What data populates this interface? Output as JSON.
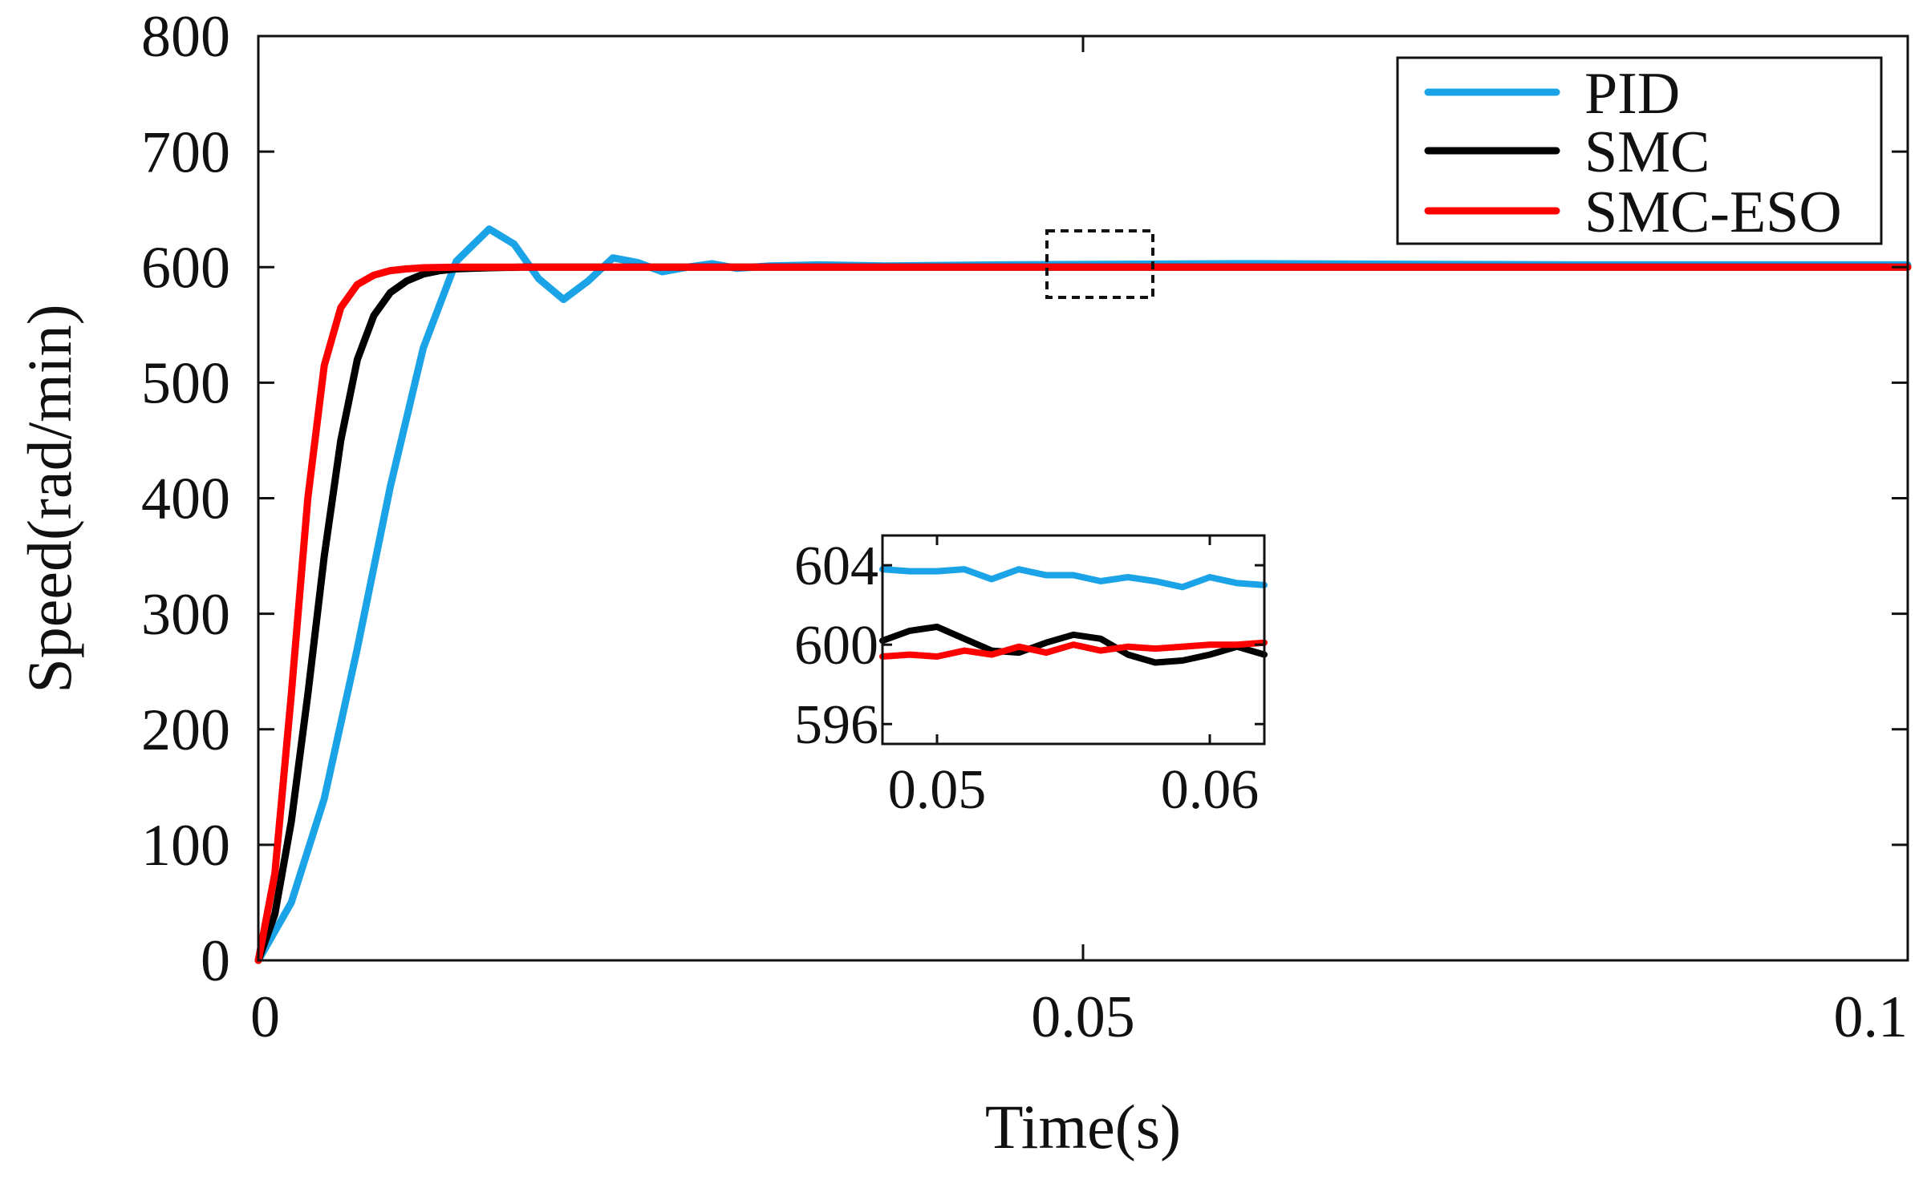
{
  "chart_data": [
    {
      "id": "main",
      "type": "line",
      "title": "",
      "xlabel": "Time(s)",
      "ylabel": "Speed(rad/min)",
      "xlim": [
        0,
        0.1
      ],
      "ylim": [
        0,
        800
      ],
      "xticks": [
        0,
        0.05,
        0.1
      ],
      "xtick_labels": [
        "0",
        "0.05",
        "0.1"
      ],
      "yticks": [
        0,
        100,
        200,
        300,
        400,
        500,
        600,
        700,
        800
      ],
      "ytick_labels": [
        "0",
        "100",
        "200",
        "300",
        "400",
        "500",
        "600",
        "700",
        "800"
      ],
      "grid": false,
      "legend_position": "top-right",
      "series": [
        {
          "name": "PID",
          "color": "#1aa3e6",
          "x": [
            0,
            0.002,
            0.004,
            0.006,
            0.008,
            0.01,
            0.012,
            0.014,
            0.0155,
            0.017,
            0.0185,
            0.02,
            0.0215,
            0.023,
            0.0245,
            0.026,
            0.0275,
            0.029,
            0.031,
            0.034,
            0.038,
            0.045,
            0.06,
            0.08,
            0.1
          ],
          "y": [
            0,
            50,
            140,
            270,
            410,
            530,
            605,
            633,
            620,
            590,
            572,
            588,
            608,
            604,
            596,
            600,
            603,
            599,
            601,
            602,
            601,
            602,
            603,
            602,
            602
          ]
        },
        {
          "name": "SMC",
          "color": "#000000",
          "x": [
            0,
            0.001,
            0.002,
            0.003,
            0.004,
            0.005,
            0.006,
            0.007,
            0.008,
            0.009,
            0.01,
            0.011,
            0.012,
            0.014,
            0.016,
            0.018,
            0.022,
            0.03,
            0.05,
            0.1
          ],
          "y": [
            0,
            40,
            120,
            230,
            350,
            450,
            520,
            558,
            578,
            588,
            594,
            597,
            598.5,
            599.5,
            600,
            600,
            600,
            600,
            600,
            600
          ]
        },
        {
          "name": "SMC-ESO",
          "color": "#ff0000",
          "x": [
            0,
            0.001,
            0.002,
            0.003,
            0.004,
            0.005,
            0.006,
            0.007,
            0.008,
            0.009,
            0.01,
            0.012,
            0.014,
            0.02,
            0.05,
            0.1
          ],
          "y": [
            0,
            75,
            230,
            400,
            515,
            565,
            585,
            593,
            597,
            598.5,
            599.5,
            600,
            600,
            600,
            600,
            600
          ]
        }
      ],
      "annotations": [
        "dashed zoom box near t=0.05 s, 600 rad/min"
      ]
    },
    {
      "id": "inset",
      "type": "line",
      "xlim": [
        0.048,
        0.062
      ],
      "ylim": [
        595,
        605.5
      ],
      "xticks": [
        0.05,
        0.06
      ],
      "xtick_labels": [
        "0.05",
        "0.06"
      ],
      "yticks": [
        596,
        600,
        604
      ],
      "ytick_labels": [
        "596",
        "600",
        "604"
      ],
      "series": [
        {
          "name": "PID",
          "x": [
            0.048,
            0.049,
            0.05,
            0.051,
            0.052,
            0.053,
            0.054,
            0.055,
            0.056,
            0.057,
            0.058,
            0.059,
            0.06,
            0.061,
            0.062
          ],
          "y": [
            603.8,
            603.7,
            603.7,
            603.8,
            603.3,
            603.8,
            603.5,
            603.5,
            603.2,
            603.4,
            603.2,
            602.9,
            603.4,
            603.1,
            603.0
          ]
        },
        {
          "name": "SMC",
          "x": [
            0.048,
            0.049,
            0.05,
            0.051,
            0.052,
            0.053,
            0.054,
            0.055,
            0.056,
            0.057,
            0.058,
            0.059,
            0.06,
            0.061,
            0.062
          ],
          "y": [
            600.2,
            600.7,
            600.9,
            600.3,
            599.7,
            599.6,
            600.1,
            600.5,
            600.3,
            599.5,
            599.1,
            599.2,
            599.5,
            599.9,
            599.5
          ]
        },
        {
          "name": "SMC-ESO",
          "x": [
            0.048,
            0.049,
            0.05,
            0.051,
            0.052,
            0.053,
            0.054,
            0.055,
            0.056,
            0.057,
            0.058,
            0.059,
            0.06,
            0.061,
            0.062
          ],
          "y": [
            599.4,
            599.5,
            599.4,
            599.7,
            599.5,
            599.9,
            599.6,
            600.0,
            599.7,
            599.9,
            599.8,
            599.9,
            600.0,
            600.0,
            600.1
          ]
        }
      ]
    }
  ]
}
